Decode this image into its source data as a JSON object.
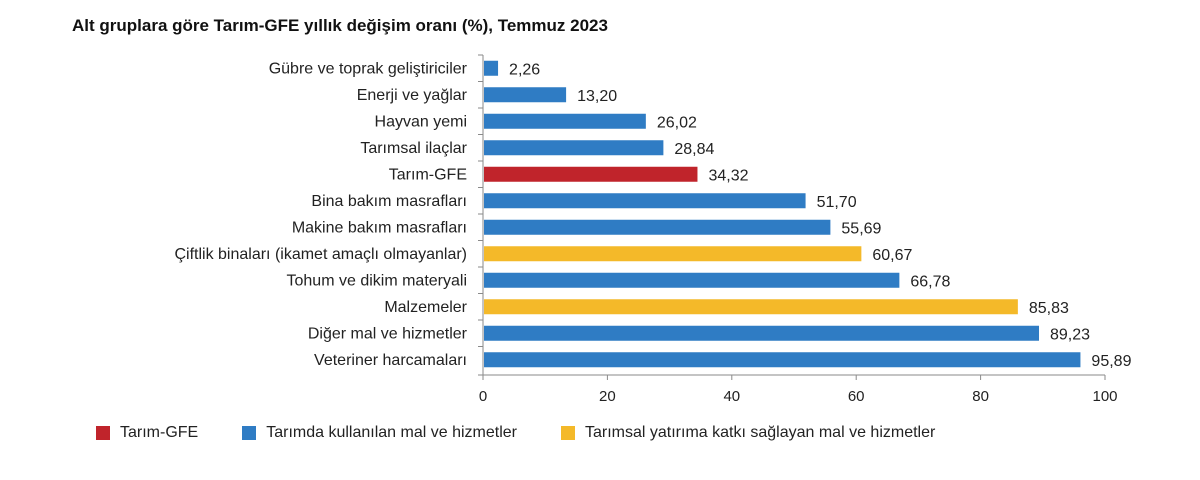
{
  "chart_data": {
    "type": "bar",
    "orientation": "horizontal",
    "title": "Alt gruplara göre Tarım-GFE yıllık değişim oranı (%), Temmuz 2023",
    "xlabel": "",
    "ylabel": "",
    "xlim": [
      0,
      100
    ],
    "x_ticks": [
      "0",
      "20",
      "40",
      "60",
      "80",
      "100"
    ],
    "grid": false,
    "legend_position": "bottom",
    "categories": [
      "Gübre ve toprak geliştiriciler",
      "Enerji ve yağlar",
      "Hayvan yemi",
      "Tarımsal ilaçlar",
      "Tarım-GFE",
      "Bina bakım masrafları",
      "Makine bakım masrafları",
      "Çiftlik binaları (ikamet amaçlı olmayanlar)",
      "Tohum ve dikim materyali",
      "Malzemeler",
      "Diğer mal ve hizmetler",
      "Veteriner harcamaları"
    ],
    "values": [
      2.26,
      13.2,
      26.02,
      28.84,
      34.32,
      51.7,
      55.69,
      60.67,
      66.78,
      85.83,
      89.23,
      95.89
    ],
    "value_labels": [
      "2,26",
      "13,20",
      "26,02",
      "28,84",
      "34,32",
      "51,70",
      "55,69",
      "60,67",
      "66,78",
      "85,83",
      "89,23",
      "95,89"
    ],
    "groups": [
      1,
      1,
      1,
      1,
      0,
      1,
      1,
      2,
      1,
      2,
      1,
      1
    ],
    "legend": [
      {
        "name": "Tarım-GFE",
        "color": "#c0242b"
      },
      {
        "name": "Tarımda kullanılan mal ve hizmetler",
        "color": "#2f7cc4"
      },
      {
        "name": "Tarımsal yatırıma katkı sağlayan mal ve hizmetler",
        "color": "#f4b929"
      }
    ]
  }
}
